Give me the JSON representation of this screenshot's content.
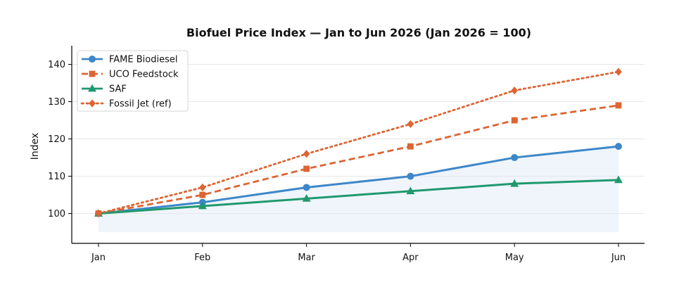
{
  "chart_data": {
    "type": "line",
    "title": "Biofuel Price Index — Jan to Jun 2026  (Jan 2026 = 100)",
    "xlabel": "",
    "ylabel": "Index",
    "categories": [
      "Jan",
      "Feb",
      "Mar",
      "Apr",
      "May",
      "Jun"
    ],
    "ylim": [
      92,
      145
    ],
    "yticks": [
      100,
      110,
      120,
      130,
      140
    ],
    "grid": true,
    "legend_position": "top-left",
    "shaded_band": {
      "series": "FAME Biodiesel",
      "baseline": 95,
      "color": "#dce9f7"
    },
    "series": [
      {
        "name": "FAME Biodiesel",
        "values": [
          100,
          103,
          107,
          110,
          115,
          118
        ],
        "color": "#3d87c9",
        "line_style": "solid",
        "marker": "circle"
      },
      {
        "name": "UCO Feedstock",
        "values": [
          100,
          105,
          112,
          118,
          125,
          129
        ],
        "color": "#dd6433",
        "line_style": "dashed",
        "marker": "square"
      },
      {
        "name": "SAF",
        "values": [
          100,
          102,
          104,
          106,
          108,
          109
        ],
        "color": "#21986f",
        "line_style": "solid",
        "marker": "triangle"
      },
      {
        "name": "Fossil Jet (ref)",
        "values": [
          100,
          107,
          116,
          124,
          133,
          138
        ],
        "color": "#dd6433",
        "line_style": "dotted",
        "marker": "diamond"
      }
    ]
  }
}
